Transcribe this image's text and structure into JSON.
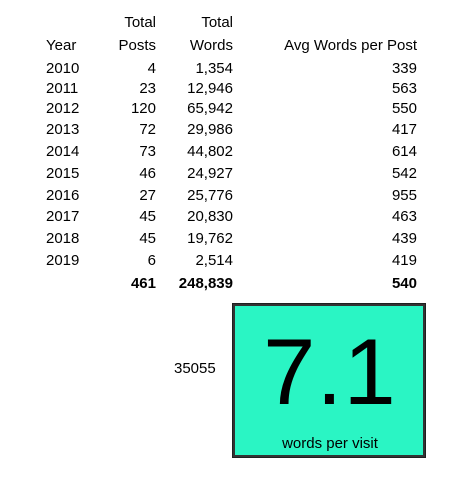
{
  "table": {
    "headers": {
      "year": "Year",
      "posts_top": "Total",
      "posts_bottom": "Posts",
      "words_top": "Total",
      "words_bottom": "Words",
      "avg": "Avg Words per Post"
    },
    "rows": [
      {
        "year": "2010",
        "posts": "4",
        "words": "1,354",
        "avg": "339"
      },
      {
        "year": "2011",
        "posts": "23",
        "words": "12,946",
        "avg": "563"
      },
      {
        "year": "2012",
        "posts": "120",
        "words": "65,942",
        "avg": "550"
      },
      {
        "year": "2013",
        "posts": "72",
        "words": "29,986",
        "avg": "417"
      },
      {
        "year": "2014",
        "posts": "73",
        "words": "44,802",
        "avg": "614"
      },
      {
        "year": "2015",
        "posts": "46",
        "words": "24,927",
        "avg": "542"
      },
      {
        "year": "2016",
        "posts": "27",
        "words": "25,776",
        "avg": "955"
      },
      {
        "year": "2017",
        "posts": "45",
        "words": "20,830",
        "avg": "463"
      },
      {
        "year": "2018",
        "posts": "45",
        "words": "19,762",
        "avg": "439"
      },
      {
        "year": "2019",
        "posts": "6",
        "words": "2,514",
        "avg": "419"
      }
    ],
    "totals": {
      "posts": "461",
      "words": "248,839",
      "avg": "540"
    }
  },
  "visits": {
    "value": "35055"
  },
  "kpi": {
    "value": "7.1",
    "label": "words per visit",
    "background_color": "#2af5c4"
  }
}
